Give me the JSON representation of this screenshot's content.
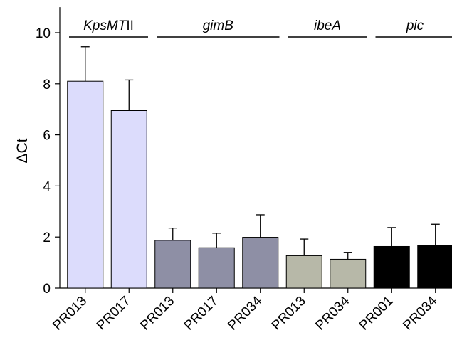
{
  "chart_data": {
    "type": "bar",
    "ylabel": "ΔCt",
    "ylim": [
      0,
      11
    ],
    "yticks": [
      0,
      2,
      4,
      6,
      8,
      10
    ],
    "grid": false,
    "error_bars": "upper",
    "groups": [
      {
        "label_parts": [
          {
            "text": "KpsMT",
            "italic": true
          },
          {
            "text": "II",
            "italic": false
          }
        ],
        "color": "#dcdcfc",
        "bars": [
          {
            "category": "PR013",
            "value": 8.1,
            "error": 1.35
          },
          {
            "category": "PR017",
            "value": 6.95,
            "error": 1.2
          }
        ]
      },
      {
        "label_parts": [
          {
            "text": "gimB",
            "italic": true
          }
        ],
        "color": "#8e8fa5",
        "bars": [
          {
            "category": "PR013",
            "value": 1.87,
            "error": 0.48
          },
          {
            "category": "PR017",
            "value": 1.58,
            "error": 0.57
          },
          {
            "category": "PR034",
            "value": 1.99,
            "error": 0.88
          }
        ]
      },
      {
        "label_parts": [
          {
            "text": "ibeA",
            "italic": true
          }
        ],
        "color": "#b7b8a8",
        "bars": [
          {
            "category": "PR013",
            "value": 1.27,
            "error": 0.65
          },
          {
            "category": "PR034",
            "value": 1.13,
            "error": 0.27
          }
        ]
      },
      {
        "label_parts": [
          {
            "text": "pic",
            "italic": true
          }
        ],
        "color": "#000000",
        "bars": [
          {
            "category": "PR001",
            "value": 1.63,
            "error": 0.74
          },
          {
            "category": "PR034",
            "value": 1.67,
            "error": 0.83
          }
        ]
      }
    ]
  }
}
